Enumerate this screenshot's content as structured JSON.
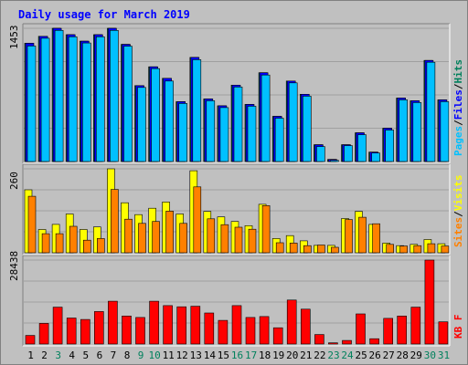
{
  "chart_data": {
    "type": "bar",
    "title": "Daily usage for March 2019",
    "days": [
      "1",
      "2",
      "3",
      "4",
      "5",
      "6",
      "7",
      "8",
      "9",
      "10",
      "11",
      "12",
      "13",
      "14",
      "15",
      "16",
      "17",
      "18",
      "19",
      "20",
      "21",
      "22",
      "23",
      "24",
      "25",
      "26",
      "27",
      "28",
      "29",
      "30",
      "31"
    ],
    "weekend_days": [
      "3",
      "9",
      "10",
      "16",
      "17",
      "23",
      "24",
      "30",
      "31"
    ],
    "panels": [
      {
        "id": "hits-files-pages",
        "ymax_label": "1453",
        "ymax": 1453,
        "legend": [
          "Pages",
          "/",
          "Files",
          "/",
          "Hits"
        ],
        "series": [
          {
            "name": "Hits",
            "color": "#00805c",
            "values": [
              1290,
              1365,
              1453,
              1383,
              1313,
              1383,
              1453,
              1278,
              828,
              1033,
              908,
              653,
              1136,
              683,
              608,
              833,
              623,
              968,
              493,
              878,
              733,
              183,
              23,
              183,
              313,
              103,
              363,
              693,
              663,
              1103,
              673
            ]
          },
          {
            "name": "Files",
            "color": "#0000ff",
            "values": [
              1290,
              1365,
              1453,
              1383,
              1313,
              1383,
              1453,
              1278,
              828,
              1033,
              908,
              653,
              1136,
              683,
              608,
              833,
              623,
              968,
              493,
              878,
              733,
              183,
              23,
              183,
              313,
              103,
              363,
              693,
              663,
              1103,
              673
            ]
          },
          {
            "name": "Pages",
            "color": "#00c0ff",
            "values": [
              1260,
              1345,
              1430,
              1360,
              1293,
              1360,
              1430,
              1258,
              808,
              1013,
              878,
              633,
              1111,
              663,
              588,
              813,
              603,
              943,
              473,
              858,
              713,
              163,
              13,
              173,
              293,
              93,
              343,
              673,
              643,
              1083,
              653
            ]
          }
        ]
      },
      {
        "id": "visits-sites",
        "ymax_label": "260",
        "ymax": 260,
        "legend": [
          "Sites",
          "/",
          "Visits"
        ],
        "series": [
          {
            "name": "Visits",
            "color": "#ffff00",
            "values": [
              195,
              72,
              88,
              120,
              72,
              80,
              260,
              155,
              118,
              138,
              157,
              120,
              254,
              128,
              111,
              97,
              84,
              150,
              44,
              53,
              37,
              23,
              23,
              106,
              128,
              88,
              30,
              22,
              26,
              41,
              28
            ]
          },
          {
            "name": "Sites",
            "color": "#ff8000",
            "values": [
              175,
              59,
              59,
              82,
              39,
              44,
              196,
              104,
              91,
              97,
              129,
              91,
              204,
              105,
              87,
              79,
              73,
              146,
              31,
              30,
              22,
              24,
              17,
              103,
              110,
              90,
              26,
              21,
              22,
              28,
              21
            ]
          }
        ]
      },
      {
        "id": "kbytes",
        "ymax_label": "28438",
        "ymax": 28438,
        "legend": [
          "KB",
          "F"
        ],
        "series": [
          {
            "name": "KBytes",
            "color": "#ff0000",
            "values": [
              2900,
              7000,
              12500,
              8800,
              8300,
              11000,
              14500,
              9500,
              9000,
              14500,
              13000,
              12600,
              12800,
              10500,
              8000,
              13000,
              9000,
              9300,
              5500,
              14900,
              11800,
              3200,
              400,
              1200,
              10200,
              1800,
              8700,
              9500,
              12500,
              28438,
              7500
            ]
          }
        ]
      }
    ]
  }
}
